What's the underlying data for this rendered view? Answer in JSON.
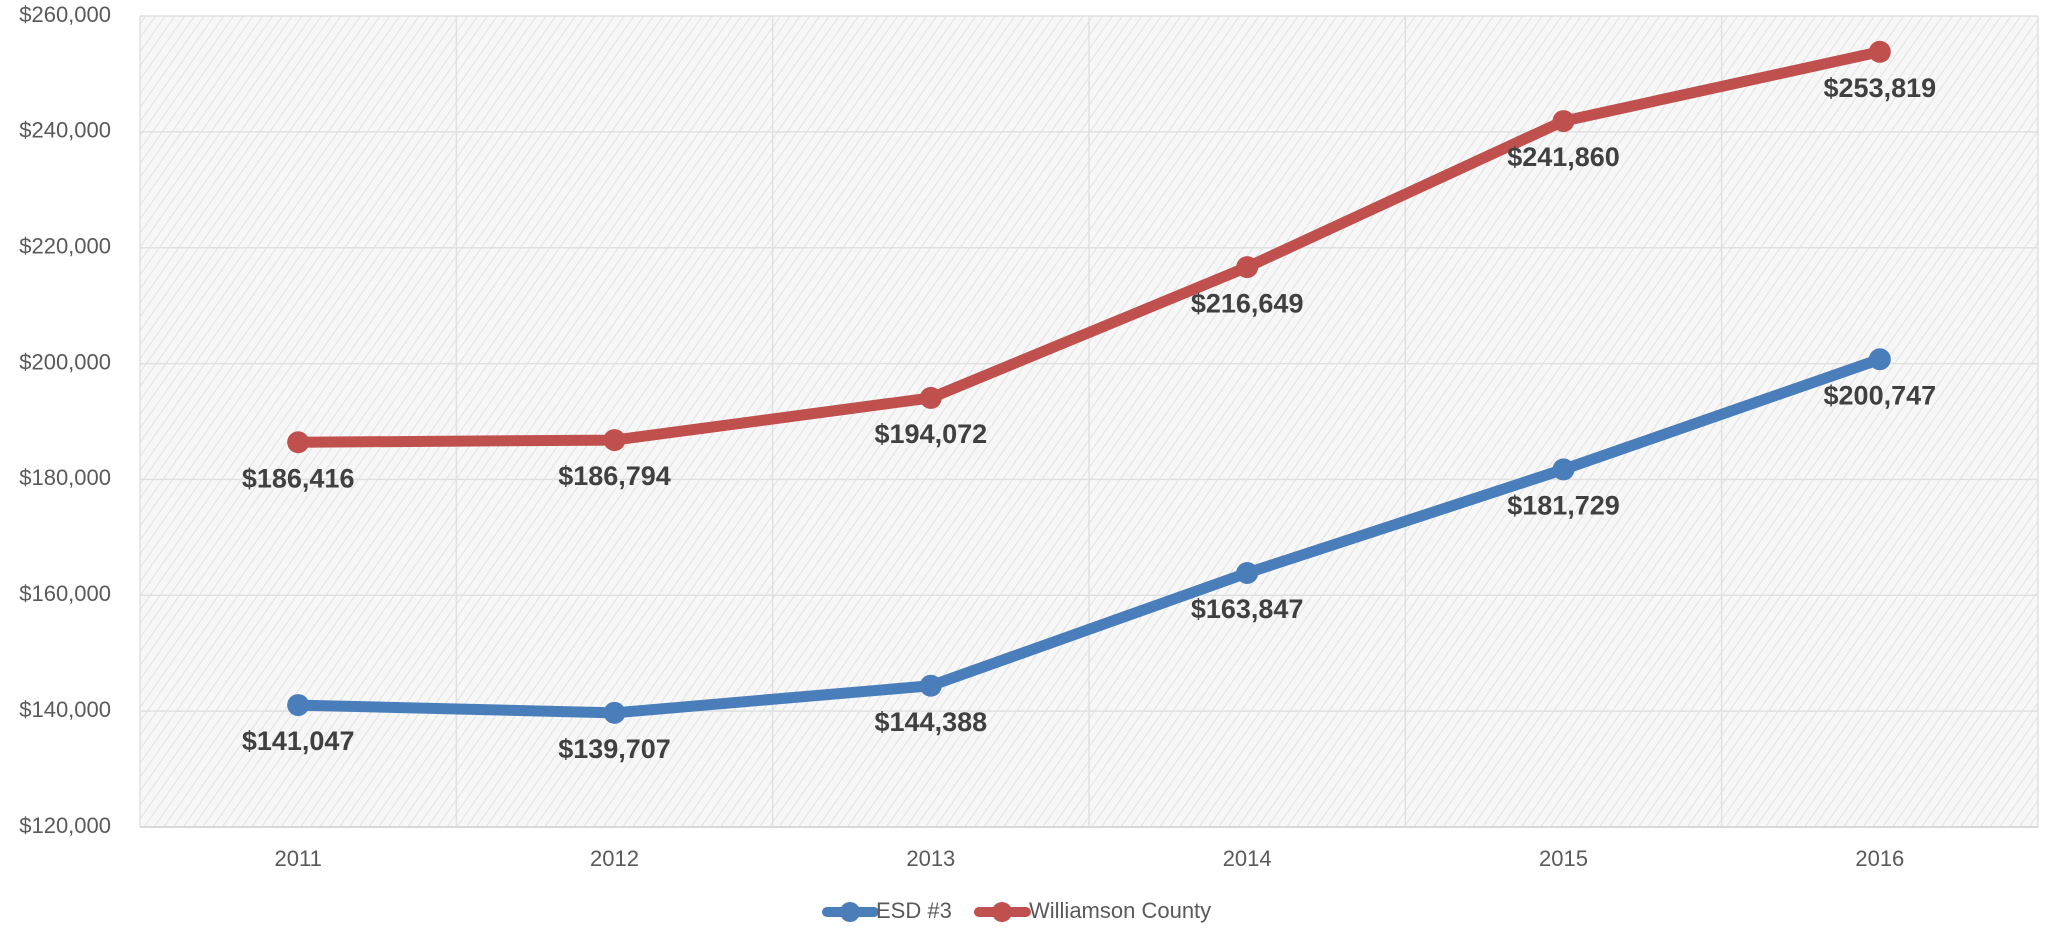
{
  "chart_data": {
    "type": "line",
    "categories": [
      "2011",
      "2012",
      "2013",
      "2014",
      "2015",
      "2016"
    ],
    "series": [
      {
        "name": "ESD #3",
        "color": "#4a7ebb",
        "values": [
          141047,
          139707,
          144388,
          163847,
          181729,
          200747
        ],
        "value_labels": [
          "$141,047",
          "$139,707",
          "$144,388",
          "$163,847",
          "$181,729",
          "$200,747"
        ]
      },
      {
        "name": "Williamson County",
        "color": "#c0504d",
        "values": [
          186416,
          186794,
          194072,
          216649,
          241860,
          253819
        ],
        "value_labels": [
          "$186,416",
          "$186,794",
          "$194,072",
          "$216,649",
          "$241,860",
          "$253,819"
        ]
      }
    ],
    "ylim": [
      120000,
      260000
    ],
    "yticks": [
      {
        "value": 120000,
        "label": "$120,000"
      },
      {
        "value": 140000,
        "label": "$140,000"
      },
      {
        "value": 160000,
        "label": "$160,000"
      },
      {
        "value": 180000,
        "label": "$180,000"
      },
      {
        "value": 200000,
        "label": "$200,000"
      },
      {
        "value": 220000,
        "label": "$220,000"
      },
      {
        "value": 240000,
        "label": "$240,000"
      },
      {
        "value": 260000,
        "label": "$260,000"
      }
    ],
    "grid": true,
    "legend": "bottom"
  }
}
